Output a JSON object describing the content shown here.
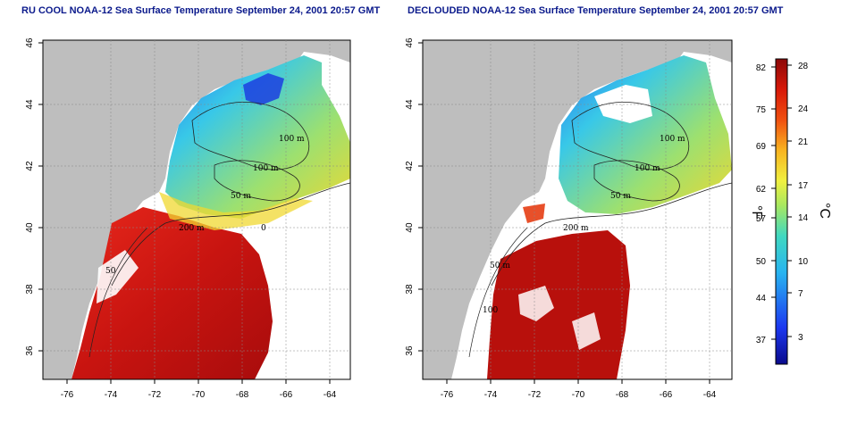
{
  "titles": {
    "left": "RU COOL NOAA-12 Sea Surface Temperature September 24, 2001 20:57 GMT",
    "right": "DECLOUDED NOAA-12 Sea Surface Temperature September 24, 2001 20:57 GMT"
  },
  "axes": {
    "x_ticks": [
      "-76",
      "-74",
      "-72",
      "-70",
      "-68",
      "-66",
      "-64"
    ],
    "y_ticks": [
      "46",
      "44",
      "42",
      "40",
      "38",
      "36"
    ]
  },
  "contour_labels": {
    "left": [
      "100 m",
      "100 m",
      "50 m",
      "200 m",
      "50",
      "0"
    ],
    "right": [
      "100 m",
      "100 m",
      "50 m",
      "200 m",
      "50 m",
      "100"
    ]
  },
  "colorbar": {
    "fahrenheit_ticks": [
      "82",
      "75",
      "69",
      "62",
      "57",
      "50",
      "44",
      "37"
    ],
    "celsius_ticks": [
      "28",
      "24",
      "21",
      "17",
      "14",
      "10",
      "7",
      "3"
    ],
    "fahrenheit_unit": "°F",
    "celsius_unit": "°C"
  },
  "colors": {
    "title": "#0b1a8c",
    "land": "#bebebe",
    "cloud_mask": "#ffffff",
    "warm": "#c81a0c",
    "cool": "#31c6e0",
    "cold": "#1622d0"
  }
}
